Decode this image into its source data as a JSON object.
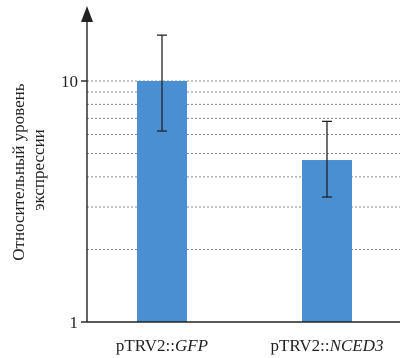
{
  "chart_data": {
    "type": "bar",
    "yscale": "log",
    "ylim": [
      1,
      18
    ],
    "grid": "minor horizontal dotted (log scale 2–9)",
    "ylabel_lines": [
      "Относительный уровень",
      "экспрессии"
    ],
    "y_ticks": [
      {
        "value": 1,
        "label": "1"
      },
      {
        "value": 10,
        "label": "10"
      }
    ],
    "categories": [
      {
        "prefix": "pTRV2::",
        "gene": "GFP"
      },
      {
        "prefix": "pTRV2::",
        "gene": "NCED3"
      }
    ],
    "values": [
      10,
      4.7
    ],
    "error_low": [
      6.2,
      3.3
    ],
    "error_high": [
      15.5,
      6.8
    ],
    "bar_color": "#4a8fd2"
  }
}
